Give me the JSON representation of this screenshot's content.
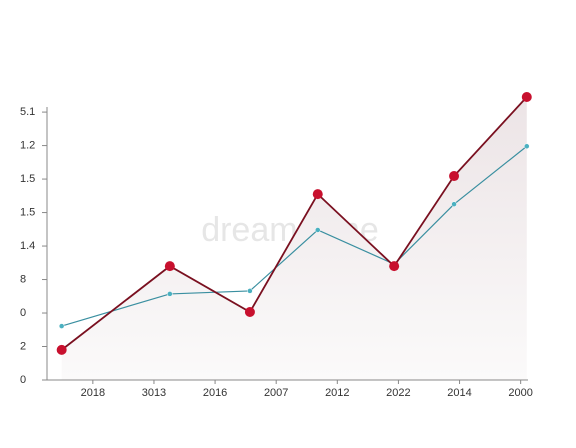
{
  "chart_data": {
    "type": "line",
    "watermark": "dreamstime",
    "x": [
      0.49,
      2.26,
      3.57,
      4.68,
      5.93,
      6.91,
      8.1
    ],
    "series": [
      {
        "color": "#7a1020",
        "marker_color": "#c8102e",
        "values": [
          0.9,
          3.4,
          2.03,
          5.55,
          3.4,
          6.09,
          8.45
        ]
      },
      {
        "color": "#3a8fa0",
        "marker_color": "#4ab0c0",
        "values": [
          1.61,
          2.57,
          2.66,
          4.48,
          3.46,
          5.25,
          6.98
        ]
      }
    ],
    "xlim": [
      0.25,
      8.12
    ],
    "xticks": [
      {
        "value": 1,
        "label": "2018"
      },
      {
        "value": 2,
        "label": "3013"
      },
      {
        "value": 3,
        "label": "2016"
      },
      {
        "value": 4,
        "label": "2007"
      },
      {
        "value": 5,
        "label": "2012"
      },
      {
        "value": 6,
        "label": "2022"
      },
      {
        "value": 7,
        "label": "2014"
      },
      {
        "value": 8,
        "label": "2000"
      }
    ],
    "ylim": [
      0,
      8.6
    ],
    "yticks": [
      0,
      {
        "value": 1,
        "label": "2"
      },
      {
        "value": 2,
        "label": "0"
      },
      {
        "value": 3,
        "label": "8"
      },
      {
        "value": 4,
        "label": "1.4"
      },
      {
        "value": 5,
        "label": "1.5"
      },
      {
        "value": 6,
        "label": "1.5"
      },
      {
        "value": 7,
        "label": "1.2"
      },
      {
        "value": 8,
        "label": "5.1"
      }
    ]
  }
}
